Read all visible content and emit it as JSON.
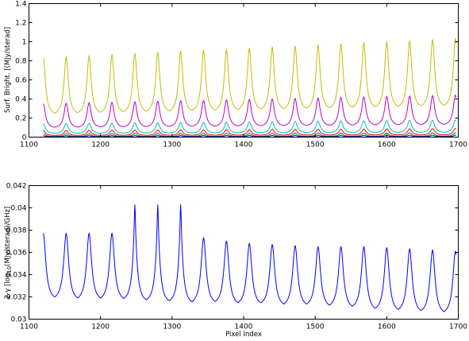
{
  "chart_data": [
    {
      "type": "line",
      "title": "",
      "xlabel": "",
      "ylabel": "Surf. Bright. [(MJy/sterad]",
      "xlim": [
        1100,
        1700
      ],
      "ylim": [
        0,
        1.4
      ],
      "x_ticks": [
        1100,
        1200,
        1300,
        1400,
        1500,
        1600,
        1700
      ],
      "y_ticks": [
        0,
        0.2,
        0.4,
        0.6,
        0.8,
        1,
        1.2,
        1.4
      ],
      "x_tick_labels": [
        "1100",
        "1200",
        "1300",
        "1400",
        "1500",
        "1600",
        "1700"
      ],
      "y_tick_labels": [
        "0",
        "0.2",
        "0.4",
        "0.6",
        "0.8",
        "1",
        "1.2",
        "1.4"
      ],
      "grid": false,
      "x_range": [
        1120,
        1697
      ],
      "peaks": [
        1120,
        1152,
        1184,
        1216,
        1248,
        1280,
        1312,
        1344,
        1376,
        1408,
        1440,
        1472,
        1504,
        1536,
        1568,
        1600,
        1632,
        1664,
        1696
      ],
      "series": [
        {
          "color": "#bfbf00",
          "peak_start": 0.83,
          "peak_end": 1.03,
          "min_start": 0.22,
          "min_end": 0.3
        },
        {
          "color": "#bf00bf",
          "peak_start": 0.35,
          "peak_end": 0.44,
          "min_start": 0.09,
          "min_end": 0.12
        },
        {
          "color": "#00bfbf",
          "peak_start": 0.14,
          "peak_end": 0.18,
          "min_start": 0.035,
          "min_end": 0.045
        },
        {
          "color": "#ff0000",
          "peak_start": 0.07,
          "peak_end": 0.09,
          "min_start": 0.015,
          "min_end": 0.02
        },
        {
          "color": "#008000",
          "peak_start": 0.035,
          "peak_end": 0.045,
          "min_start": 0.006,
          "min_end": 0.008
        },
        {
          "color": "#0000ff",
          "peak_start": 0.015,
          "peak_end": 0.02,
          "min_start": 0.002,
          "min_end": 0.003
        }
      ]
    },
    {
      "type": "line",
      "title": "",
      "xlabel": "Pixel Index",
      "ylabel_parts": [
        "2-γ [log",
        "10",
        "(MJy/sterad)/GHz]"
      ],
      "xlim": [
        1100,
        1700
      ],
      "ylim": [
        0.03,
        0.042
      ],
      "x_ticks": [
        1100,
        1200,
        1300,
        1400,
        1500,
        1600,
        1700
      ],
      "y_ticks": [
        0.03,
        0.032,
        0.034,
        0.036,
        0.038,
        0.04,
        0.042
      ],
      "x_tick_labels": [
        "1100",
        "1200",
        "1300",
        "1400",
        "1500",
        "1600",
        "1700"
      ],
      "y_tick_labels": [
        "0.03",
        "0.032",
        "0.034",
        "0.036",
        "0.038",
        "0.04",
        "0.042"
      ],
      "grid": false,
      "x_range": [
        1120,
        1697
      ],
      "series": [
        {
          "color": "#0000ff",
          "peaks_x": [
            1120,
            1152,
            1184,
            1216,
            1248,
            1280,
            1312,
            1344,
            1376,
            1408,
            1440,
            1472,
            1504,
            1536,
            1568,
            1600,
            1632,
            1664,
            1696
          ],
          "peaks_y": [
            0.0377,
            0.0377,
            0.0377,
            0.0377,
            0.0403,
            0.0403,
            0.0403,
            0.0373,
            0.037,
            0.0368,
            0.0367,
            0.0366,
            0.0365,
            0.0365,
            0.0365,
            0.0364,
            0.0363,
            0.0362,
            0.0361
          ],
          "mins_x": [
            1136,
            1168,
            1200,
            1232,
            1264,
            1296,
            1328,
            1360,
            1392,
            1424,
            1456,
            1488,
            1520,
            1552,
            1584,
            1616,
            1648,
            1680
          ],
          "mins_y": [
            0.0316,
            0.0315,
            0.0315,
            0.0315,
            0.0314,
            0.0313,
            0.0312,
            0.0312,
            0.0311,
            0.0311,
            0.031,
            0.031,
            0.0309,
            0.0308,
            0.0306,
            0.0305,
            0.0304,
            0.0303
          ]
        }
      ]
    }
  ]
}
